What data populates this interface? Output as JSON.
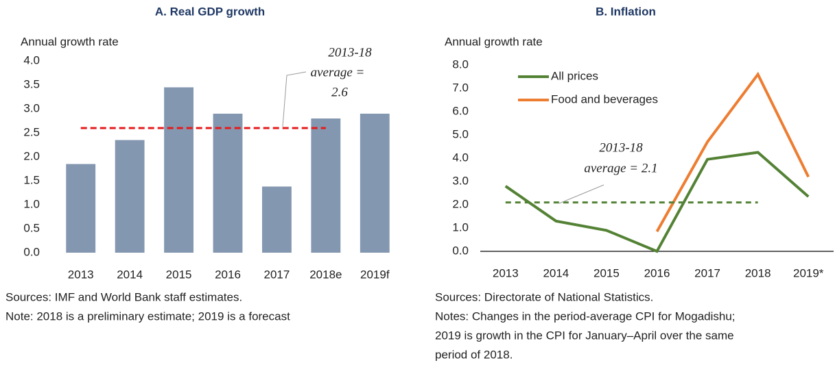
{
  "chart_data": [
    {
      "type": "bar",
      "title": "A. Real GDP growth",
      "y_label": "Annual growth rate",
      "categories": [
        "2013",
        "2014",
        "2015",
        "2016",
        "2017",
        "2018e",
        "2019f"
      ],
      "values": [
        1.85,
        2.35,
        3.45,
        2.9,
        1.38,
        2.8,
        2.9
      ],
      "color": "#8497b0",
      "ylim": [
        0,
        4
      ],
      "yticks": [
        {
          "value": 0,
          "label": "0.0"
        },
        {
          "value": 0.5,
          "label": "0.5"
        },
        {
          "value": 1,
          "label": "1.0"
        },
        {
          "value": 1.5,
          "label": "1.5"
        },
        {
          "value": 2,
          "label": "2.0"
        },
        {
          "value": 2.5,
          "label": "2.5"
        },
        {
          "value": 3,
          "label": "3.0"
        },
        {
          "value": 3.5,
          "label": "3.5"
        },
        {
          "value": 4,
          "label": "4.0"
        }
      ],
      "average_line": {
        "value": 2.6,
        "color": "#e41a1c",
        "from": "2013",
        "to": "2018e"
      },
      "annotation": [
        "2013-18",
        "average =",
        "2.6"
      ],
      "notes": [
        "Sources: IMF and World Bank staff estimates.",
        "Note: 2018 is a preliminary estimate; 2019 is a forecast"
      ]
    },
    {
      "type": "line",
      "title": "B. Inflation",
      "y_label": "Annual growth rate",
      "categories": [
        "2013",
        "2014",
        "2015",
        "2016",
        "2017",
        "2018",
        "2019*"
      ],
      "series": [
        {
          "name": "All prices",
          "color": "#548235",
          "values": [
            2.8,
            1.3,
            0.9,
            0.0,
            3.95,
            4.25,
            2.35
          ]
        },
        {
          "name": "Food and beverages",
          "color": "#ed7d31",
          "values": [
            null,
            null,
            null,
            0.85,
            4.7,
            7.6,
            3.2
          ]
        }
      ],
      "ylim": [
        0,
        8
      ],
      "yticks": [
        {
          "value": 0,
          "label": "0.0"
        },
        {
          "value": 1,
          "label": "1.0"
        },
        {
          "value": 2,
          "label": "2.0"
        },
        {
          "value": 3,
          "label": "3.0"
        },
        {
          "value": 4,
          "label": "4.0"
        },
        {
          "value": 5,
          "label": "5.0"
        },
        {
          "value": 6,
          "label": "6.0"
        },
        {
          "value": 7,
          "label": "7.0"
        },
        {
          "value": 8,
          "label": "8.0"
        }
      ],
      "average_line": {
        "value": 2.1,
        "color": "#548235",
        "from": "2013",
        "to": "2018"
      },
      "annotation": [
        "2013-18",
        "average = 2.1"
      ],
      "notes": [
        "Sources: Directorate of National Statistics.",
        "Notes: Changes in the period-average CPI for Mogadishu;",
        "2019 is growth in the CPI for January–April over the same",
        "period of 2018."
      ]
    }
  ]
}
